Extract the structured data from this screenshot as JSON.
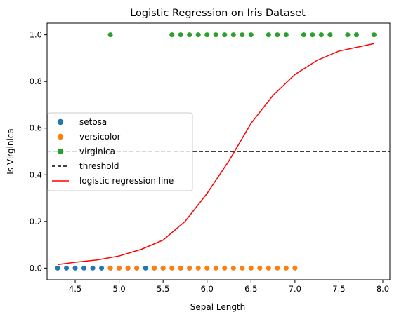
{
  "chart_data": {
    "type": "scatter",
    "title": "Logistic Regression on Iris Dataset",
    "xlabel": "Sepal Length",
    "ylabel": "Is Virginica",
    "xlim": [
      4.18,
      8.08
    ],
    "ylim": [
      -0.05,
      1.05
    ],
    "x_ticks": [
      4.5,
      5.0,
      5.5,
      6.0,
      6.5,
      7.0,
      7.5,
      8.0
    ],
    "y_ticks": [
      0.0,
      0.2,
      0.4,
      0.6,
      0.8,
      1.0
    ],
    "grid": false,
    "legend_position": "center-left",
    "series": [
      {
        "name": "setosa",
        "kind": "scatter",
        "color": "#1f77b4",
        "points": [
          [
            4.3,
            0
          ],
          [
            4.4,
            0
          ],
          [
            4.5,
            0
          ],
          [
            4.6,
            0
          ],
          [
            4.7,
            0
          ],
          [
            4.8,
            0
          ],
          [
            4.9,
            0
          ],
          [
            5.0,
            0
          ],
          [
            5.1,
            0
          ],
          [
            5.2,
            0
          ],
          [
            5.3,
            0
          ],
          [
            5.4,
            0
          ],
          [
            5.5,
            0
          ],
          [
            5.7,
            0
          ],
          [
            5.8,
            0
          ]
        ]
      },
      {
        "name": "versicolor",
        "kind": "scatter",
        "color": "#ff7f0e",
        "points": [
          [
            4.9,
            0
          ],
          [
            5.0,
            0
          ],
          [
            5.1,
            0
          ],
          [
            5.2,
            0
          ],
          [
            5.4,
            0
          ],
          [
            5.5,
            0
          ],
          [
            5.6,
            0
          ],
          [
            5.7,
            0
          ],
          [
            5.8,
            0
          ],
          [
            5.9,
            0
          ],
          [
            6.0,
            0
          ],
          [
            6.1,
            0
          ],
          [
            6.2,
            0
          ],
          [
            6.3,
            0
          ],
          [
            6.4,
            0
          ],
          [
            6.5,
            0
          ],
          [
            6.6,
            0
          ],
          [
            6.7,
            0
          ],
          [
            6.8,
            0
          ],
          [
            6.9,
            0
          ],
          [
            7.0,
            0
          ]
        ]
      },
      {
        "name": "virginica",
        "kind": "scatter",
        "color": "#2ca02c",
        "points": [
          [
            4.9,
            1
          ],
          [
            5.6,
            1
          ],
          [
            5.7,
            1
          ],
          [
            5.8,
            1
          ],
          [
            5.9,
            1
          ],
          [
            6.0,
            1
          ],
          [
            6.1,
            1
          ],
          [
            6.2,
            1
          ],
          [
            6.3,
            1
          ],
          [
            6.4,
            1
          ],
          [
            6.5,
            1
          ],
          [
            6.7,
            1
          ],
          [
            6.8,
            1
          ],
          [
            6.9,
            1
          ],
          [
            7.1,
            1
          ],
          [
            7.2,
            1
          ],
          [
            7.3,
            1
          ],
          [
            7.4,
            1
          ],
          [
            7.6,
            1
          ],
          [
            7.7,
            1
          ],
          [
            7.9,
            1
          ]
        ]
      },
      {
        "name": "threshold",
        "kind": "hline",
        "color": "#000000",
        "y": 0.5,
        "style": "dashed"
      },
      {
        "name": "logistic regression line",
        "kind": "line",
        "color": "#ff0000",
        "x": [
          4.3,
          4.5,
          4.75,
          5.0,
          5.25,
          5.5,
          5.75,
          6.0,
          6.25,
          6.5,
          6.75,
          7.0,
          7.25,
          7.5,
          7.75,
          7.9
        ],
        "y": [
          0.015,
          0.025,
          0.035,
          0.052,
          0.08,
          0.12,
          0.2,
          0.32,
          0.46,
          0.62,
          0.74,
          0.83,
          0.89,
          0.93,
          0.95,
          0.962
        ]
      }
    ]
  }
}
